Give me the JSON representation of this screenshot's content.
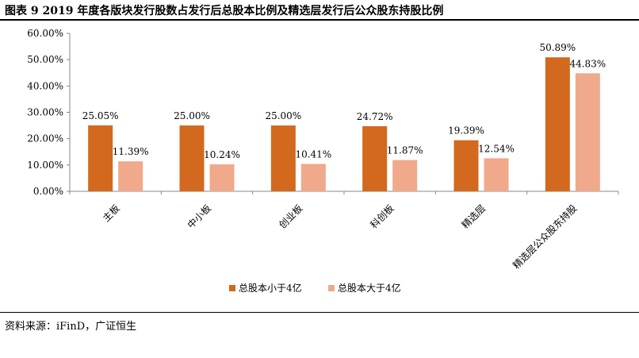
{
  "figure": {
    "title": "图表 9 2019 年度各版块发行股数占发行后总股本比例及精选层发行后公众股东持股比例",
    "source": "资料来源：iFinD，广证恒生"
  },
  "chart_data": {
    "type": "bar",
    "categories": [
      "主板",
      "中小板",
      "创业板",
      "科创板",
      "精选层",
      "精选层公众股东持股"
    ],
    "series": [
      {
        "name": "总股本小于4亿",
        "values": [
          25.05,
          25.0,
          25.0,
          24.72,
          19.39,
          50.89
        ],
        "labels": [
          "25.05%",
          "25.00%",
          "25.00%",
          "24.72%",
          "19.39%",
          "50.89%"
        ]
      },
      {
        "name": "总股本大于4亿",
        "values": [
          11.39,
          10.24,
          10.41,
          11.87,
          12.54,
          44.83
        ],
        "labels": [
          "11.39%",
          "10.24%",
          "10.41%",
          "11.87%",
          "12.54%",
          "44.83%"
        ]
      }
    ],
    "ylim": [
      0,
      60
    ],
    "yticks": [
      0,
      10,
      20,
      30,
      40,
      50,
      60
    ],
    "ytick_labels": [
      "0.00%",
      "10.00%",
      "20.00%",
      "30.00%",
      "40.00%",
      "50.00%",
      "60.00%"
    ],
    "colors": [
      "#D2691E",
      "#F0A98A"
    ],
    "legend_position": "bottom",
    "grid": false
  }
}
